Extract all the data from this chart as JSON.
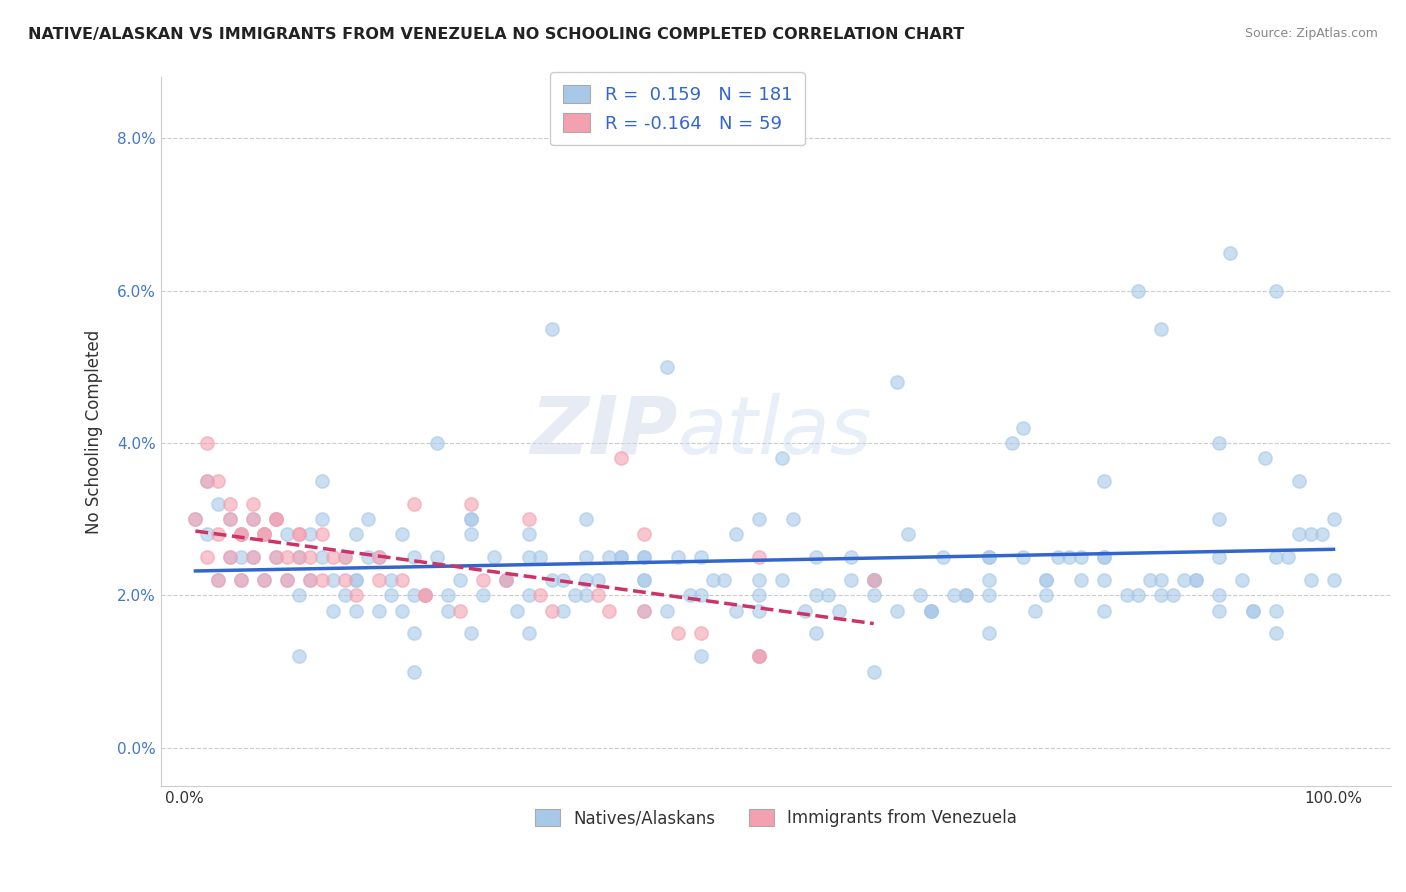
{
  "title": "NATIVE/ALASKAN VS IMMIGRANTS FROM VENEZUELA NO SCHOOLING COMPLETED CORRELATION CHART",
  "source": "Source: ZipAtlas.com",
  "ylabel": "No Schooling Completed",
  "xlim": [
    0.0,
    1.0
  ],
  "ylim": [
    0.0,
    0.085
  ],
  "xtick_labels": [
    "0.0%",
    "100.0%"
  ],
  "ytick_labels": [
    "0.0%",
    "2.0%",
    "4.0%",
    "6.0%",
    "8.0%"
  ],
  "ytick_vals": [
    0.0,
    0.02,
    0.04,
    0.06,
    0.08
  ],
  "r_blue": 0.159,
  "n_blue": 181,
  "r_pink": -0.164,
  "n_pink": 59,
  "blue_color": "#a8c8e8",
  "pink_color": "#f4a0b0",
  "blue_line_color": "#3366cc",
  "pink_line_color": "#cc3366",
  "watermark_zip": "ZIP",
  "watermark_atlas": "atlas",
  "legend_label_blue": "Natives/Alaskans",
  "legend_label_pink": "Immigrants from Venezuela",
  "blue_x": [
    0.01,
    0.02,
    0.02,
    0.03,
    0.03,
    0.04,
    0.04,
    0.05,
    0.05,
    0.06,
    0.06,
    0.07,
    0.07,
    0.08,
    0.08,
    0.09,
    0.09,
    0.1,
    0.1,
    0.11,
    0.11,
    0.12,
    0.12,
    0.13,
    0.13,
    0.14,
    0.14,
    0.15,
    0.15,
    0.16,
    0.16,
    0.17,
    0.17,
    0.18,
    0.18,
    0.19,
    0.19,
    0.2,
    0.2,
    0.21,
    0.22,
    0.23,
    0.24,
    0.25,
    0.26,
    0.27,
    0.28,
    0.29,
    0.3,
    0.31,
    0.32,
    0.33,
    0.34,
    0.35,
    0.36,
    0.38,
    0.4,
    0.42,
    0.44,
    0.46,
    0.48,
    0.5,
    0.52,
    0.54,
    0.56,
    0.58,
    0.6,
    0.62,
    0.64,
    0.66,
    0.68,
    0.7,
    0.72,
    0.74,
    0.76,
    0.78,
    0.8,
    0.82,
    0.84,
    0.86,
    0.88,
    0.9,
    0.92,
    0.93,
    0.94,
    0.95,
    0.96,
    0.97,
    0.98,
    0.99,
    1.0,
    0.25,
    0.35,
    0.4,
    0.45,
    0.5,
    0.55,
    0.6,
    0.65,
    0.7,
    0.75,
    0.8,
    0.85,
    0.9,
    0.95,
    0.73,
    0.83,
    0.91,
    0.62,
    0.52,
    0.42,
    0.32,
    0.22,
    0.12,
    0.3,
    0.4,
    0.5,
    0.6,
    0.7,
    0.8,
    0.9,
    0.2,
    0.3,
    0.4,
    0.5,
    0.6,
    0.7,
    0.8,
    0.9,
    0.15,
    0.25,
    0.35,
    0.45,
    0.55,
    0.65,
    0.75,
    0.85,
    0.95,
    0.1,
    0.2,
    0.3,
    0.4,
    0.5,
    0.6,
    0.7,
    0.8,
    0.9,
    1.0,
    0.05,
    0.15,
    0.25,
    0.35,
    0.45,
    0.55,
    0.65,
    0.75,
    0.85,
    0.95,
    0.33,
    0.43,
    0.53,
    0.63,
    0.73,
    0.83,
    0.93,
    0.28,
    0.38,
    0.48,
    0.58,
    0.68,
    0.78,
    0.88,
    0.98,
    0.23,
    0.37,
    0.47,
    0.57,
    0.67,
    0.77,
    0.87,
    0.97
  ],
  "blue_y": [
    0.03,
    0.028,
    0.035,
    0.022,
    0.032,
    0.025,
    0.03,
    0.022,
    0.028,
    0.025,
    0.03,
    0.022,
    0.028,
    0.025,
    0.03,
    0.022,
    0.028,
    0.025,
    0.02,
    0.022,
    0.028,
    0.025,
    0.03,
    0.022,
    0.018,
    0.025,
    0.02,
    0.022,
    0.028,
    0.025,
    0.03,
    0.018,
    0.025,
    0.02,
    0.022,
    0.028,
    0.018,
    0.025,
    0.015,
    0.02,
    0.025,
    0.018,
    0.022,
    0.03,
    0.02,
    0.025,
    0.022,
    0.018,
    0.02,
    0.025,
    0.022,
    0.018,
    0.02,
    0.025,
    0.022,
    0.025,
    0.022,
    0.018,
    0.02,
    0.022,
    0.018,
    0.02,
    0.022,
    0.018,
    0.02,
    0.025,
    0.022,
    0.018,
    0.02,
    0.025,
    0.02,
    0.022,
    0.04,
    0.018,
    0.025,
    0.022,
    0.025,
    0.02,
    0.022,
    0.02,
    0.022,
    0.025,
    0.022,
    0.018,
    0.038,
    0.06,
    0.025,
    0.035,
    0.022,
    0.028,
    0.03,
    0.03,
    0.022,
    0.025,
    0.02,
    0.022,
    0.025,
    0.022,
    0.018,
    0.025,
    0.022,
    0.035,
    0.055,
    0.04,
    0.025,
    0.042,
    0.06,
    0.065,
    0.048,
    0.038,
    0.05,
    0.055,
    0.04,
    0.035,
    0.028,
    0.025,
    0.03,
    0.022,
    0.02,
    0.025,
    0.03,
    0.02,
    0.025,
    0.022,
    0.018,
    0.02,
    0.025,
    0.022,
    0.018,
    0.018,
    0.015,
    0.02,
    0.012,
    0.015,
    0.018,
    0.02,
    0.022,
    0.015,
    0.012,
    0.01,
    0.015,
    0.018,
    0.012,
    0.01,
    0.015,
    0.018,
    0.02,
    0.022,
    0.025,
    0.022,
    0.028,
    0.03,
    0.025,
    0.02,
    0.018,
    0.022,
    0.02,
    0.018,
    0.022,
    0.025,
    0.03,
    0.028,
    0.025,
    0.02,
    0.018,
    0.022,
    0.025,
    0.028,
    0.022,
    0.02,
    0.025,
    0.022,
    0.028,
    0.02,
    0.025,
    0.022,
    0.018,
    0.02,
    0.025,
    0.022,
    0.028
  ],
  "pink_x": [
    0.01,
    0.02,
    0.02,
    0.03,
    0.03,
    0.04,
    0.04,
    0.05,
    0.05,
    0.06,
    0.06,
    0.07,
    0.07,
    0.08,
    0.08,
    0.09,
    0.1,
    0.1,
    0.11,
    0.12,
    0.13,
    0.14,
    0.15,
    0.17,
    0.19,
    0.21,
    0.24,
    0.28,
    0.32,
    0.36,
    0.4,
    0.45,
    0.5,
    0.02,
    0.03,
    0.04,
    0.05,
    0.06,
    0.07,
    0.08,
    0.09,
    0.1,
    0.11,
    0.12,
    0.14,
    0.17,
    0.21,
    0.26,
    0.31,
    0.37,
    0.43,
    0.5,
    0.2,
    0.3,
    0.4,
    0.5,
    0.6,
    0.38,
    0.25
  ],
  "pink_y": [
    0.03,
    0.025,
    0.035,
    0.022,
    0.028,
    0.025,
    0.03,
    0.022,
    0.028,
    0.025,
    0.03,
    0.022,
    0.028,
    0.025,
    0.03,
    0.022,
    0.028,
    0.025,
    0.022,
    0.028,
    0.025,
    0.022,
    0.02,
    0.025,
    0.022,
    0.02,
    0.018,
    0.022,
    0.018,
    0.02,
    0.018,
    0.015,
    0.012,
    0.04,
    0.035,
    0.032,
    0.028,
    0.032,
    0.028,
    0.03,
    0.025,
    0.028,
    0.025,
    0.022,
    0.025,
    0.022,
    0.02,
    0.022,
    0.02,
    0.018,
    0.015,
    0.012,
    0.032,
    0.03,
    0.028,
    0.025,
    0.022,
    0.038,
    0.032
  ]
}
